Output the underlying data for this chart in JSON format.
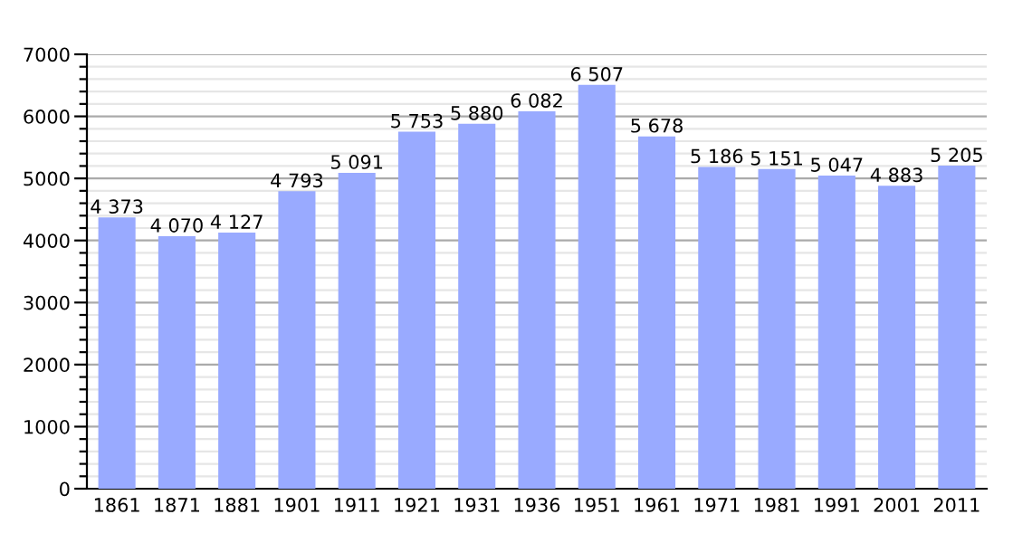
{
  "chart_data": {
    "type": "bar",
    "categories": [
      "1861",
      "1871",
      "1881",
      "1901",
      "1911",
      "1921",
      "1931",
      "1936",
      "1951",
      "1961",
      "1971",
      "1981",
      "1991",
      "2001",
      "2011"
    ],
    "values": [
      4373,
      4070,
      4127,
      4793,
      5091,
      5753,
      5880,
      6082,
      6507,
      5678,
      5186,
      5151,
      5047,
      4883,
      5205
    ],
    "value_labels": [
      "4 373",
      "4 070",
      "4 127",
      "4 793",
      "5 091",
      "5 753",
      "5 880",
      "6 082",
      "6 507",
      "5 678",
      "5 186",
      "5 151",
      "5 047",
      "4 883",
      "5 205"
    ],
    "color": "#99aaff",
    "ylim": [
      0,
      7000
    ],
    "yticks": [
      0,
      {
        "value": 200,
        "label": null
      },
      {
        "value": 400,
        "label": null
      },
      {
        "value": 600,
        "label": null
      },
      {
        "value": 800,
        "label": null
      },
      1000,
      {
        "value": 1200,
        "label": null
      },
      {
        "value": 1400,
        "label": null
      },
      {
        "value": 1600,
        "label": null
      },
      {
        "value": 1800,
        "label": null
      },
      2000,
      {
        "value": 2200,
        "label": null
      },
      {
        "value": 2400,
        "label": null
      },
      {
        "value": 2600,
        "label": null
      },
      {
        "value": 2800,
        "label": null
      },
      3000,
      {
        "value": 3200,
        "label": null
      },
      {
        "value": 3400,
        "label": null
      },
      {
        "value": 3600,
        "label": null
      },
      {
        "value": 3800,
        "label": null
      },
      4000,
      {
        "value": 4200,
        "label": null
      },
      {
        "value": 4400,
        "label": null
      },
      {
        "value": 4600,
        "label": null
      },
      {
        "value": 4800,
        "label": null
      },
      5000,
      {
        "value": 5200,
        "label": null
      },
      {
        "value": 5400,
        "label": null
      },
      {
        "value": 5600,
        "label": null
      },
      {
        "value": 5800,
        "label": null
      },
      6000,
      {
        "value": 6200,
        "label": null
      },
      {
        "value": 6400,
        "label": null
      },
      {
        "value": 6600,
        "label": null
      },
      {
        "value": 6800,
        "label": null
      },
      7000
    ],
    "grid": "y"
  }
}
